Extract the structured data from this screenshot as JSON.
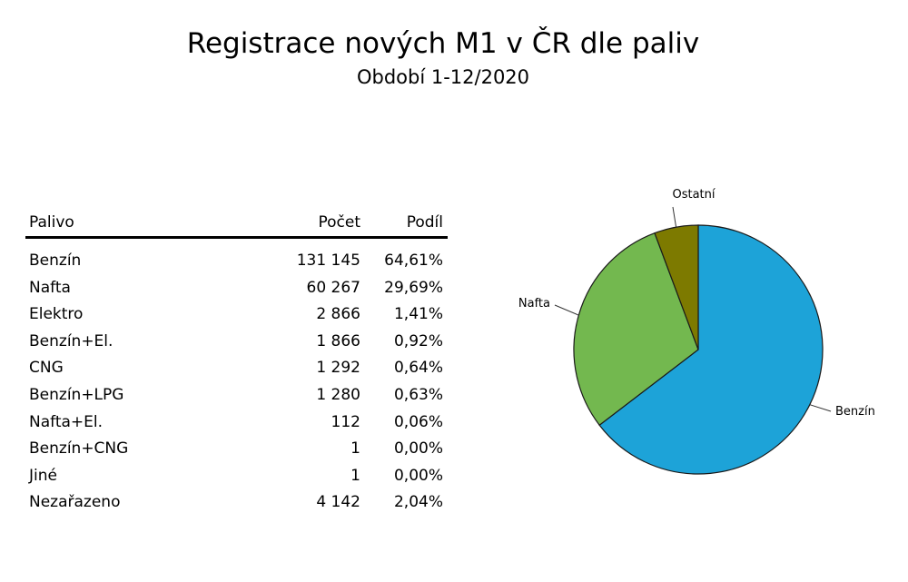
{
  "title": "Registrace nových M1 v ČR dle paliv",
  "subtitle": "Období 1-12/2020",
  "table": {
    "headers": [
      "Palivo",
      "Počet",
      "Podíl"
    ],
    "rows": [
      [
        "Benzín",
        "131 145",
        "64,61%"
      ],
      [
        "Nafta",
        "60 267",
        "29,69%"
      ],
      [
        "Elektro",
        "2 866",
        "1,41%"
      ],
      [
        "Benzín+El.",
        "1 866",
        "0,92%"
      ],
      [
        "CNG",
        "1 292",
        "0,64%"
      ],
      [
        "Benzín+LPG",
        "1 280",
        "0,63%"
      ],
      [
        "Nafta+El.",
        "112",
        "0,06%"
      ],
      [
        "Benzín+CNG",
        "1",
        "0,00%"
      ],
      [
        "Jiné",
        "1",
        "0,00%"
      ],
      [
        "Nezařazeno",
        "4 142",
        "2,04%"
      ]
    ]
  },
  "chart_data": {
    "type": "pie",
    "slices": [
      {
        "label": "Benzín",
        "value": 64.61,
        "color": "#1da3d8"
      },
      {
        "label": "Nafta",
        "value": 29.69,
        "color": "#73b84f"
      },
      {
        "label": "Ostatní",
        "value": 5.7,
        "color": "#7d7a00"
      }
    ]
  }
}
